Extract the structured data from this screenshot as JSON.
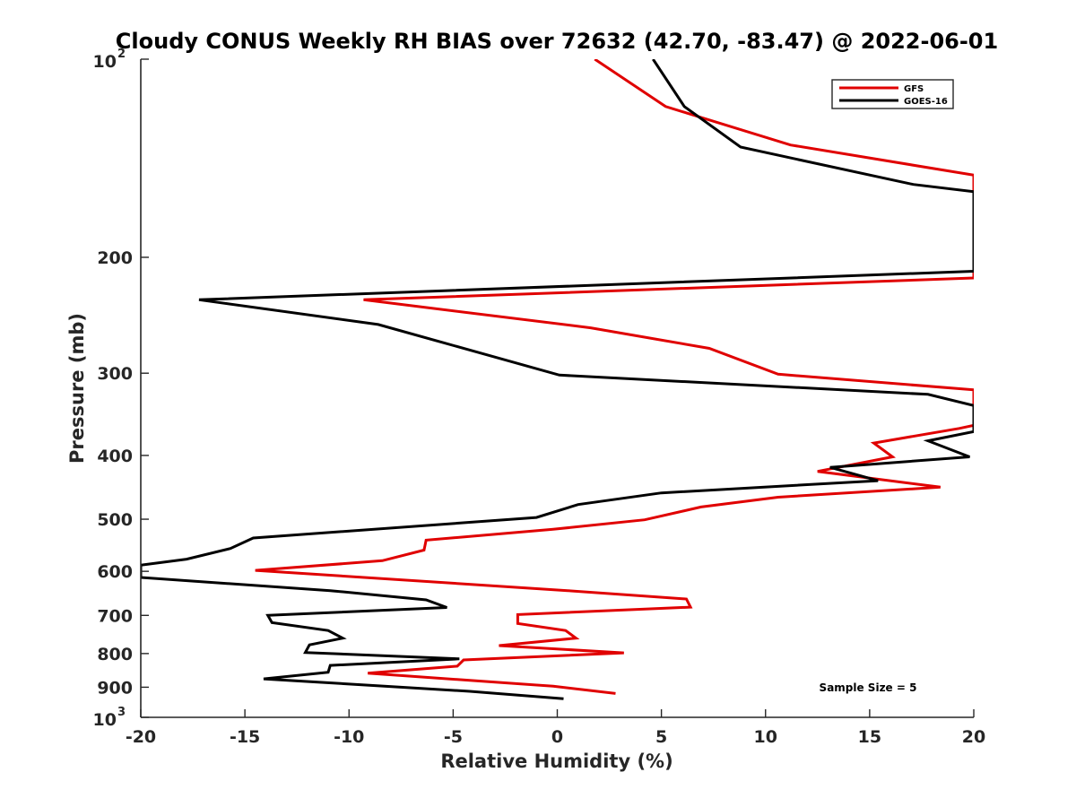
{
  "chart_data": {
    "type": "line",
    "title": "Cloudy CONUS Weekly RH BIAS over 72632 (42.70, -83.47) @ 2022-06-01",
    "xlabel": "Relative Humidity (%)",
    "ylabel": "Pressure (mb)",
    "xlim": [
      -20,
      20
    ],
    "ylim": [
      100,
      1000
    ],
    "yscale": "log",
    "y_reversed": true,
    "x_ticks": [
      -20,
      -15,
      -10,
      -5,
      0,
      5,
      10,
      15,
      20
    ],
    "x_tick_labels": [
      "-20",
      "-15",
      "-10",
      "-5",
      "0",
      "5",
      "10",
      "15",
      "20"
    ],
    "y_ticks": [
      100,
      200,
      300,
      400,
      500,
      600,
      700,
      800,
      900,
      1000
    ],
    "y_tick_labels": [
      {
        "base": "10",
        "sup": "2"
      },
      {
        "base": "200"
      },
      {
        "base": "300"
      },
      {
        "base": "400"
      },
      {
        "base": "500"
      },
      {
        "base": "600"
      },
      {
        "base": "700"
      },
      {
        "base": "800"
      },
      {
        "base": "900"
      },
      {
        "base": "10",
        "sup": "3"
      }
    ],
    "grid": false,
    "legend_position": "top-right",
    "annotation": "Sample Size = 5",
    "series": [
      {
        "name": "GFS",
        "color": "#e00000",
        "points": [
          [
            1.8,
            100
          ],
          [
            5.2,
            118
          ],
          [
            11.2,
            135
          ],
          [
            20,
            150
          ],
          [
            20,
            150
          ],
          [
            20,
            215
          ],
          [
            -9.3,
            232
          ],
          [
            1.6,
            256
          ],
          [
            7.3,
            275
          ],
          [
            10.6,
            301
          ],
          [
            20,
            318
          ],
          [
            20,
            360
          ],
          [
            19.3,
            364
          ],
          [
            15.2,
            383
          ],
          [
            16.1,
            402
          ],
          [
            12.5,
            423
          ],
          [
            18.4,
            447
          ],
          [
            10.6,
            463
          ],
          [
            6.9,
            479
          ],
          [
            4.2,
            501
          ],
          [
            -0.2,
            518
          ],
          [
            -6.3,
            538
          ],
          [
            -6.4,
            557
          ],
          [
            -8.4,
            578
          ],
          [
            -14.5,
            598
          ],
          [
            0.5,
            642
          ],
          [
            6.2,
            661
          ],
          [
            6.4,
            680
          ],
          [
            -1.9,
            698
          ],
          [
            -1.9,
            720
          ],
          [
            0.4,
            738
          ],
          [
            0.9,
            758
          ],
          [
            -2.8,
            778
          ],
          [
            3.2,
            798
          ],
          [
            -4.5,
            818
          ],
          [
            -4.8,
            836
          ],
          [
            -9.1,
            857
          ],
          [
            -0.2,
            897
          ],
          [
            2.8,
            920
          ]
        ]
      },
      {
        "name": "GOES-16",
        "color": "#000000",
        "points": [
          [
            4.6,
            100
          ],
          [
            6.1,
            118
          ],
          [
            8.8,
            136
          ],
          [
            17.1,
            155
          ],
          [
            20,
            159
          ],
          [
            20,
            210
          ],
          [
            -17.2,
            232
          ],
          [
            -8.6,
            253
          ],
          [
            0.1,
            302
          ],
          [
            17.8,
            323
          ],
          [
            20,
            336
          ],
          [
            20,
            368
          ],
          [
            17.8,
            380
          ],
          [
            19.8,
            402
          ],
          [
            13.1,
            417
          ],
          [
            15.4,
            437
          ],
          [
            5.0,
            456
          ],
          [
            1.0,
            475
          ],
          [
            -1.0,
            497
          ],
          [
            -14.6,
            534
          ],
          [
            -15.7,
            554
          ],
          [
            -17.8,
            575
          ],
          [
            -20,
            587
          ],
          [
            -20,
            613
          ],
          [
            -10.9,
            642
          ],
          [
            -6.3,
            663
          ],
          [
            -5.3,
            681
          ],
          [
            -13.9,
            700
          ],
          [
            -13.7,
            718
          ],
          [
            -11.0,
            738
          ],
          [
            -10.3,
            758
          ],
          [
            -11.9,
            776
          ],
          [
            -12.1,
            797
          ],
          [
            -4.7,
            815
          ],
          [
            -10.9,
            834
          ],
          [
            -11.0,
            854
          ],
          [
            -14.1,
            874
          ],
          [
            -4.2,
            913
          ],
          [
            0.3,
            937
          ]
        ]
      }
    ]
  }
}
